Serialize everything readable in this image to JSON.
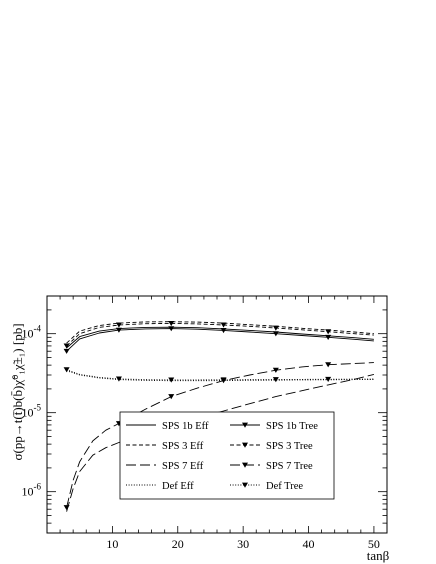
{
  "chart_data": {
    "type": "line",
    "title": "",
    "xlabel": "tanβ",
    "ylabel": "σ(pp→t(t̄)b(b̄)χ̃⁰₁χ̃±₁) [pb]",
    "xlim": [
      0,
      52
    ],
    "ylim": [
      3e-07,
      0.0003
    ],
    "yscale": "log",
    "x_ticks": [
      10,
      20,
      30,
      40,
      50
    ],
    "x_tick_labels": [
      "10",
      "20",
      "30",
      "40",
      "50"
    ],
    "y_ticks": [
      1e-06,
      1e-05,
      0.0001
    ],
    "y_tick_labels": [
      {
        "base": "10",
        "exp": "-6"
      },
      {
        "base": "10",
        "exp": "-5"
      },
      {
        "base": "10",
        "exp": "-4"
      }
    ],
    "grid": false,
    "legend_placement": "bottom-right",
    "series": [
      {
        "name": "SPS 1b Eff",
        "style": "solid",
        "x": [
          3,
          5,
          8,
          11,
          15,
          19,
          23,
          27,
          31,
          35,
          39,
          43,
          47,
          50
        ],
        "y": [
          6.6e-05,
          9.2e-05,
          0.000108,
          0.000116,
          0.00012,
          0.000121,
          0.000119,
          0.000115,
          0.00011,
          0.000105,
          9.9e-05,
          9.4e-05,
          8.9e-05,
          8.5e-05
        ]
      },
      {
        "name": "SPS 3 Eff",
        "style": "dashed",
        "x": [
          3,
          5,
          8,
          11,
          15,
          19,
          23,
          27,
          31,
          35,
          39,
          43,
          47,
          50
        ],
        "y": [
          7.6e-05,
          0.000108,
          0.000127,
          0.000136,
          0.000141,
          0.000142,
          0.00014,
          0.000136,
          0.00013,
          0.000124,
          0.000117,
          0.000111,
          0.000105,
          0.0001
        ]
      },
      {
        "name": "SPS 7 Eff",
        "style": "longdash",
        "x": [
          3,
          4,
          5,
          7,
          9,
          11,
          15,
          19,
          23,
          27,
          31,
          35,
          39,
          43,
          47,
          50
        ],
        "y": [
          5.6e-07,
          1.1e-06,
          1.8e-06,
          2.9e-06,
          3.6e-06,
          4.2e-06,
          5.5e-06,
          7e-06,
          8.6e-06,
          1.05e-05,
          1.3e-05,
          1.6e-05,
          1.9e-05,
          2.25e-05,
          2.65e-05,
          3.05e-05
        ]
      },
      {
        "name": "Def Eff",
        "style": "dotted",
        "x": [
          3,
          5,
          8,
          11,
          15,
          19,
          23,
          27,
          31,
          35,
          39,
          43,
          47,
          50
        ],
        "y": [
          3.4e-05,
          3e-05,
          2.75e-05,
          2.62e-05,
          2.56e-05,
          2.54e-05,
          2.54e-05,
          2.55e-05,
          2.57e-05,
          2.58e-05,
          2.6e-05,
          2.61e-05,
          2.62e-05,
          2.63e-05
        ]
      },
      {
        "name": "SPS 1b Tree",
        "style": "solid",
        "marker": "triangle-down",
        "x": [
          3,
          5,
          8,
          11,
          15,
          19,
          23,
          27,
          31,
          35,
          39,
          43,
          47,
          50
        ],
        "y": [
          6e-05,
          8.6e-05,
          0.000102,
          0.000111,
          0.000115,
          0.000116,
          0.000114,
          0.00011,
          0.000105,
          0.0001,
          9.5e-05,
          9e-05,
          8.5e-05,
          8.1e-05
        ],
        "marker_x": [
          3,
          11,
          19,
          27,
          35,
          43
        ],
        "marker_y": [
          6e-05,
          0.000111,
          0.000116,
          0.00011,
          0.0001,
          9e-05
        ]
      },
      {
        "name": "SPS 3 Tree",
        "style": "dashed",
        "marker": "triangle-down",
        "x": [
          3,
          5,
          8,
          11,
          15,
          19,
          23,
          27,
          31,
          35,
          39,
          43,
          47,
          50
        ],
        "y": [
          7e-05,
          0.0001,
          0.00012,
          0.000129,
          0.000134,
          0.000135,
          0.000133,
          0.000129,
          0.000124,
          0.000118,
          0.000112,
          0.000106,
          0.0001,
          9.6e-05
        ],
        "marker_x": [
          3,
          11,
          19,
          27,
          35,
          43
        ],
        "marker_y": [
          7e-05,
          0.000129,
          0.000135,
          0.000129,
          0.000118,
          0.000106
        ]
      },
      {
        "name": "SPS 7 Tree",
        "style": "longdash",
        "marker": "triangle-down",
        "x": [
          3,
          4,
          5,
          7,
          9,
          11,
          15,
          19,
          23,
          27,
          31,
          35,
          39,
          43,
          47,
          50
        ],
        "y": [
          6.3e-07,
          1.4e-06,
          2.4e-06,
          4.4e-06,
          6e-06,
          7.3e-06,
          1.1e-05,
          1.6e-05,
          2.05e-05,
          2.55e-05,
          3e-05,
          3.45e-05,
          3.8e-05,
          4.05e-05,
          4.2e-05,
          4.3e-05
        ],
        "marker_x": [
          3,
          11,
          19,
          27,
          35,
          43
        ],
        "marker_y": [
          6.3e-07,
          7.3e-06,
          1.6e-05,
          2.55e-05,
          3.45e-05,
          4.05e-05
        ]
      },
      {
        "name": "Def Tree",
        "style": "dotted",
        "marker": "triangle-down",
        "x": [
          3,
          5,
          8,
          11,
          15,
          19,
          23,
          27,
          31,
          35,
          39,
          43,
          47,
          50
        ],
        "y": [
          3.5e-05,
          3.05e-05,
          2.8e-05,
          2.68e-05,
          2.62e-05,
          2.6e-05,
          2.6e-05,
          2.61e-05,
          2.62e-05,
          2.63e-05,
          2.64e-05,
          2.65e-05,
          2.66e-05,
          2.67e-05
        ],
        "marker_x": [
          3,
          11,
          19,
          27,
          35,
          43
        ],
        "marker_y": [
          3.5e-05,
          2.68e-05,
          2.6e-05,
          2.61e-05,
          2.63e-05,
          2.65e-05
        ]
      }
    ]
  }
}
